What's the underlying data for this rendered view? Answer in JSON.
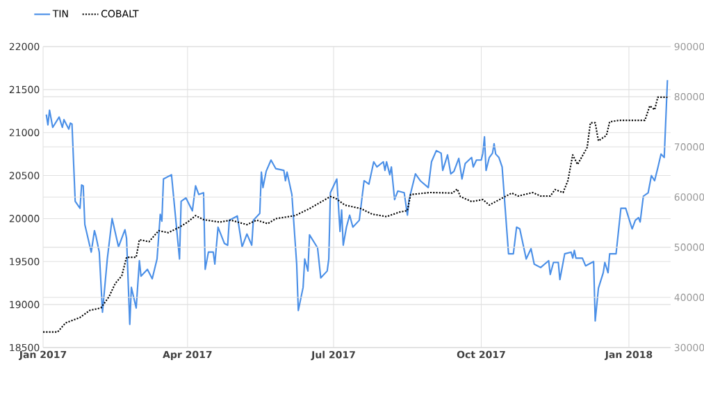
{
  "chart_data": {
    "type": "line",
    "xlim": [
      "2017-01-01",
      "2018-01-27"
    ],
    "xticks": [
      {
        "value": "2017-01-01",
        "label": "Jan 2017"
      },
      {
        "value": "2017-04-01",
        "label": "Apr 2017"
      },
      {
        "value": "2017-07-01",
        "label": "Jul 2017"
      },
      {
        "value": "2017-10-01",
        "label": "Oct 2017"
      },
      {
        "value": "2018-01-01",
        "label": "Jan 2018"
      }
    ],
    "ylim": [
      18500,
      22000
    ],
    "yticks": [
      18500,
      19000,
      19500,
      20000,
      20500,
      21000,
      21500,
      22000
    ],
    "y2lim": [
      30000,
      90000
    ],
    "y2ticks": [
      30000,
      40000,
      50000,
      60000,
      70000,
      80000,
      90000
    ],
    "grid": true,
    "legend": "top left",
    "series": [
      {
        "name": "TIN",
        "color": "#4a8fe7",
        "line_style": "solid",
        "x": [
          "2017-01-03",
          "2017-01-04",
          "2017-01-05",
          "2017-01-07",
          "2017-01-11",
          "2017-01-13",
          "2017-01-14",
          "2017-01-17",
          "2017-01-18",
          "2017-01-19",
          "2017-01-21",
          "2017-01-24",
          "2017-01-25",
          "2017-01-26",
          "2017-01-27",
          "2017-01-31",
          "2017-02-02",
          "2017-02-03",
          "2017-02-05",
          "2017-02-07",
          "2017-02-10",
          "2017-02-13",
          "2017-02-17",
          "2017-02-21",
          "2017-02-22",
          "2017-02-24",
          "2017-02-25",
          "2017-02-28",
          "2017-03-02",
          "2017-03-03",
          "2017-03-07",
          "2017-03-10",
          "2017-03-13",
          "2017-03-15",
          "2017-03-16",
          "2017-03-17",
          "2017-03-22",
          "2017-03-27",
          "2017-03-28",
          "2017-03-31",
          "2017-04-04",
          "2017-04-06",
          "2017-04-08",
          "2017-04-11",
          "2017-04-12",
          "2017-04-14",
          "2017-04-17",
          "2017-04-18",
          "2017-04-20",
          "2017-04-24",
          "2017-04-26",
          "2017-04-27",
          "2017-05-02",
          "2017-05-05",
          "2017-05-08",
          "2017-05-11",
          "2017-05-12",
          "2017-05-16",
          "2017-05-17",
          "2017-05-18",
          "2017-05-20",
          "2017-05-23",
          "2017-05-26",
          "2017-05-31",
          "2017-06-01",
          "2017-06-02",
          "2017-06-05",
          "2017-06-08",
          "2017-06-09",
          "2017-06-12",
          "2017-06-13",
          "2017-06-15",
          "2017-06-16",
          "2017-06-21",
          "2017-06-23",
          "2017-06-27",
          "2017-06-28",
          "2017-06-29",
          "2017-07-03",
          "2017-07-05",
          "2017-07-06",
          "2017-07-07",
          "2017-07-09",
          "2017-07-11",
          "2017-07-13",
          "2017-07-17",
          "2017-07-20",
          "2017-07-23",
          "2017-07-26",
          "2017-07-28",
          "2017-08-01",
          "2017-08-02",
          "2017-08-03",
          "2017-08-05",
          "2017-08-06",
          "2017-08-08",
          "2017-08-10",
          "2017-08-14",
          "2017-08-16",
          "2017-08-17",
          "2017-08-21",
          "2017-08-24",
          "2017-08-29",
          "2017-08-31",
          "2017-09-03",
          "2017-09-06",
          "2017-09-07",
          "2017-09-10",
          "2017-09-12",
          "2017-09-14",
          "2017-09-17",
          "2017-09-19",
          "2017-09-21",
          "2017-09-25",
          "2017-09-26",
          "2017-09-28",
          "2017-10-01",
          "2017-10-02",
          "2017-10-03",
          "2017-10-04",
          "2017-10-06",
          "2017-10-08",
          "2017-10-09",
          "2017-10-10",
          "2017-10-12",
          "2017-10-14",
          "2017-10-18",
          "2017-10-21",
          "2017-10-23",
          "2017-10-25",
          "2017-10-29",
          "2017-11-01",
          "2017-11-03",
          "2017-11-07",
          "2017-11-12",
          "2017-11-13",
          "2017-11-15",
          "2017-11-18",
          "2017-11-19",
          "2017-11-22",
          "2017-11-26",
          "2017-11-27",
          "2017-11-28",
          "2017-11-29",
          "2017-12-03",
          "2017-12-05",
          "2017-12-10",
          "2017-12-11",
          "2017-12-13",
          "2017-12-16",
          "2017-12-17",
          "2017-12-19",
          "2017-12-20",
          "2017-12-24",
          "2017-12-27",
          "2017-12-30",
          "2018-01-03",
          "2018-01-05",
          "2018-01-07",
          "2018-01-08",
          "2018-01-10",
          "2018-01-13",
          "2018-01-15",
          "2018-01-17",
          "2018-01-19",
          "2018-01-21",
          "2018-01-23",
          "2018-01-25"
        ],
        "values": [
          21210,
          21090,
          21260,
          21060,
          21180,
          21060,
          21150,
          21040,
          21110,
          21100,
          20200,
          20120,
          20390,
          20380,
          19930,
          19610,
          19860,
          19790,
          19610,
          18910,
          19530,
          20000,
          19670,
          19870,
          19770,
          18770,
          19200,
          18960,
          19510,
          19330,
          19410,
          19300,
          19530,
          20050,
          19970,
          20460,
          20510,
          19530,
          20200,
          20240,
          20090,
          20380,
          20280,
          20300,
          19410,
          19610,
          19610,
          19470,
          19900,
          19710,
          19690,
          19980,
          20030,
          19670,
          19820,
          19690,
          19980,
          20060,
          20540,
          20360,
          20550,
          20680,
          20580,
          20560,
          20440,
          20540,
          20280,
          19470,
          18930,
          19200,
          19530,
          19390,
          19810,
          19660,
          19310,
          19390,
          19530,
          20300,
          20460,
          19850,
          20100,
          19690,
          19900,
          20040,
          19900,
          19980,
          20440,
          20400,
          20660,
          20600,
          20660,
          20560,
          20660,
          20510,
          20600,
          20220,
          20320,
          20300,
          20040,
          20220,
          20520,
          20440,
          20360,
          20660,
          20790,
          20760,
          20560,
          20740,
          20520,
          20550,
          20700,
          20460,
          20640,
          20710,
          20600,
          20680,
          20680,
          20760,
          20950,
          20560,
          20710,
          20760,
          20870,
          20750,
          20710,
          20600,
          19590,
          19590,
          19900,
          19880,
          19530,
          19650,
          19470,
          19430,
          19510,
          19350,
          19490,
          19490,
          19290,
          19590,
          19610,
          19540,
          19630,
          19540,
          19540,
          19450,
          19500,
          18810,
          19190,
          19370,
          19490,
          19370,
          19590,
          19590,
          20120,
          20120,
          19880,
          19980,
          20010,
          19960,
          20260,
          20300,
          20500,
          20440,
          20590,
          20750,
          20710,
          21610
        ]
      },
      {
        "name": "COBALT",
        "color": "#000000",
        "line_style": "dotted",
        "axis": "y2",
        "x": [
          "2017-01-01",
          "2017-01-10",
          "2017-01-15",
          "2017-01-24",
          "2017-01-30",
          "2017-02-06",
          "2017-02-11",
          "2017-02-15",
          "2017-02-19",
          "2017-02-22",
          "2017-02-28",
          "2017-03-02",
          "2017-03-08",
          "2017-03-14",
          "2017-03-20",
          "2017-03-27",
          "2017-04-01",
          "2017-04-06",
          "2017-04-11",
          "2017-04-21",
          "2017-04-28",
          "2017-05-08",
          "2017-05-14",
          "2017-05-21",
          "2017-05-26",
          "2017-06-07",
          "2017-06-16",
          "2017-06-29",
          "2017-07-02",
          "2017-07-08",
          "2017-07-18",
          "2017-07-25",
          "2017-08-03",
          "2017-08-11",
          "2017-08-16",
          "2017-08-18",
          "2017-08-30",
          "2017-09-13",
          "2017-09-16",
          "2017-09-18",
          "2017-09-25",
          "2017-10-02",
          "2017-10-06",
          "2017-10-10",
          "2017-10-20",
          "2017-10-24",
          "2017-11-02",
          "2017-11-07",
          "2017-11-13",
          "2017-11-16",
          "2017-11-21",
          "2017-11-24",
          "2017-11-27",
          "2017-11-30",
          "2017-12-06",
          "2017-12-08",
          "2017-12-11",
          "2017-12-13",
          "2017-12-18",
          "2017-12-20",
          "2017-12-26",
          "2018-01-11",
          "2018-01-14",
          "2018-01-17",
          "2018-01-19",
          "2018-01-25"
        ],
        "values": [
          33100,
          33100,
          34900,
          36000,
          37400,
          37900,
          40100,
          42800,
          44300,
          48000,
          48000,
          51500,
          51100,
          53300,
          52900,
          54000,
          55000,
          56300,
          55500,
          55000,
          55400,
          54500,
          55400,
          54700,
          55700,
          56300,
          57700,
          60100,
          59800,
          58400,
          57700,
          56600,
          56100,
          57000,
          57300,
          60500,
          60900,
          60800,
          61600,
          60100,
          59100,
          59500,
          58400,
          59100,
          60800,
          60200,
          60900,
          60200,
          60200,
          61500,
          60900,
          63300,
          68400,
          66500,
          69900,
          74800,
          74800,
          71200,
          72300,
          75000,
          75300,
          75300,
          78200,
          77400,
          79900,
          79900
        ]
      }
    ]
  }
}
